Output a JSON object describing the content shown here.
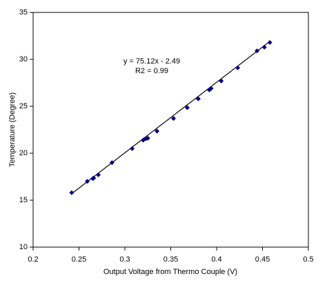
{
  "chart_data": {
    "type": "scatter",
    "x_label": "Output Voltage from Thermo Couple (V)",
    "y_label": "Temperature (Degree)",
    "annotations": [
      "y = 75.12x - 2.49",
      "R2 = 0.99"
    ],
    "trendline": {
      "slope": 75.12,
      "intercept": -2.49,
      "color": "#000000"
    },
    "series": [
      {
        "name": "Temperature",
        "color": "#000080",
        "x": [
          0.242,
          0.259,
          0.265,
          0.266,
          0.271,
          0.286,
          0.308,
          0.32,
          0.323,
          0.325,
          0.335,
          0.353,
          0.368,
          0.38,
          0.392,
          0.394,
          0.405,
          0.423,
          0.444,
          0.452,
          0.458
        ],
        "values": [
          15.8,
          17.0,
          17.3,
          17.35,
          17.7,
          19.0,
          20.5,
          21.4,
          21.55,
          21.6,
          22.35,
          23.7,
          24.85,
          25.8,
          26.75,
          26.9,
          27.7,
          29.1,
          30.9,
          31.3,
          31.8
        ]
      }
    ],
    "xlim": [
      0.2,
      0.5
    ],
    "xticks": [
      0.2,
      0.25,
      0.3,
      0.35,
      0.4,
      0.45,
      0.5
    ],
    "ylim": [
      10,
      35
    ],
    "yticks": [
      10,
      15,
      20,
      25,
      30,
      35
    ]
  }
}
